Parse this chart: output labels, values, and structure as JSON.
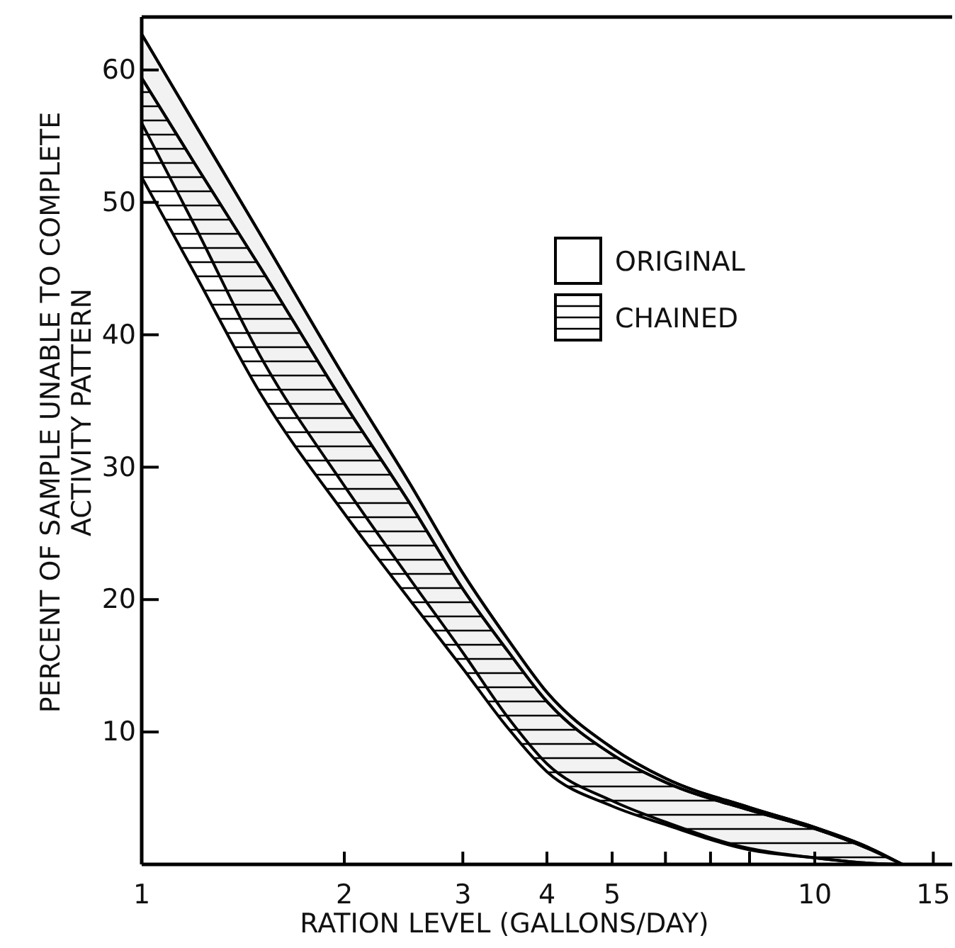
{
  "chart_data": {
    "type": "line",
    "xlabel": "RATION LEVEL (GALLONS/DAY)",
    "ylabel": "PERCENT OF SAMPLE UNABLE TO COMPLETE\nACTIVITY PATTERN",
    "x": [
      1,
      1.2,
      1.5,
      2,
      2.5,
      3,
      3.5,
      4,
      5,
      6,
      8,
      10,
      12,
      13.5
    ],
    "series": [
      {
        "name": "ORIGINAL",
        "color": "#000000",
        "values": [
          62.7,
          55.9,
          47.6,
          36.8,
          28.8,
          22,
          17,
          13,
          8.8,
          6.5,
          4.3,
          2.8,
          1.3,
          0
        ],
        "upper": [
          62.7,
          55.9,
          47.6,
          36.8,
          28.8,
          22,
          17,
          13,
          8.8,
          6.5,
          4.3,
          2.8,
          1.3,
          0
        ],
        "lower": [
          56,
          48.2,
          38.4,
          28.6,
          21.6,
          16,
          11.1,
          7.6,
          4.8,
          3.2,
          1.2,
          0.5,
          0.1,
          0
        ]
      },
      {
        "name": "CHAINED",
        "color": "#000000",
        "values": [
          59.4,
          52.9,
          45.1,
          34.8,
          27.3,
          20.8,
          16.1,
          12.3,
          8.3,
          6.2,
          4.1,
          2.7,
          1.2,
          0
        ],
        "upper": [
          59.4,
          52.9,
          45.1,
          34.8,
          27.3,
          20.8,
          16.1,
          12.3,
          8.3,
          6.2,
          4.1,
          2.7,
          1.2,
          0
        ],
        "lower": [
          51.9,
          44.6,
          35.6,
          26.5,
          20,
          14.8,
          10.3,
          7,
          4.4,
          3,
          1.1,
          0.5,
          0.1,
          0
        ]
      }
    ],
    "log": "x",
    "xlim": [
      1,
      16
    ],
    "xticks": [
      1,
      2,
      3,
      4,
      5,
      {
        "value": 6,
        "label": null
      },
      {
        "value": 7,
        "label": null
      },
      {
        "value": 8,
        "label": null
      },
      10,
      15
    ],
    "ylim": [
      0,
      64
    ],
    "yticks": [
      10,
      20,
      30,
      40,
      50,
      60
    ],
    "legend": "right"
  }
}
